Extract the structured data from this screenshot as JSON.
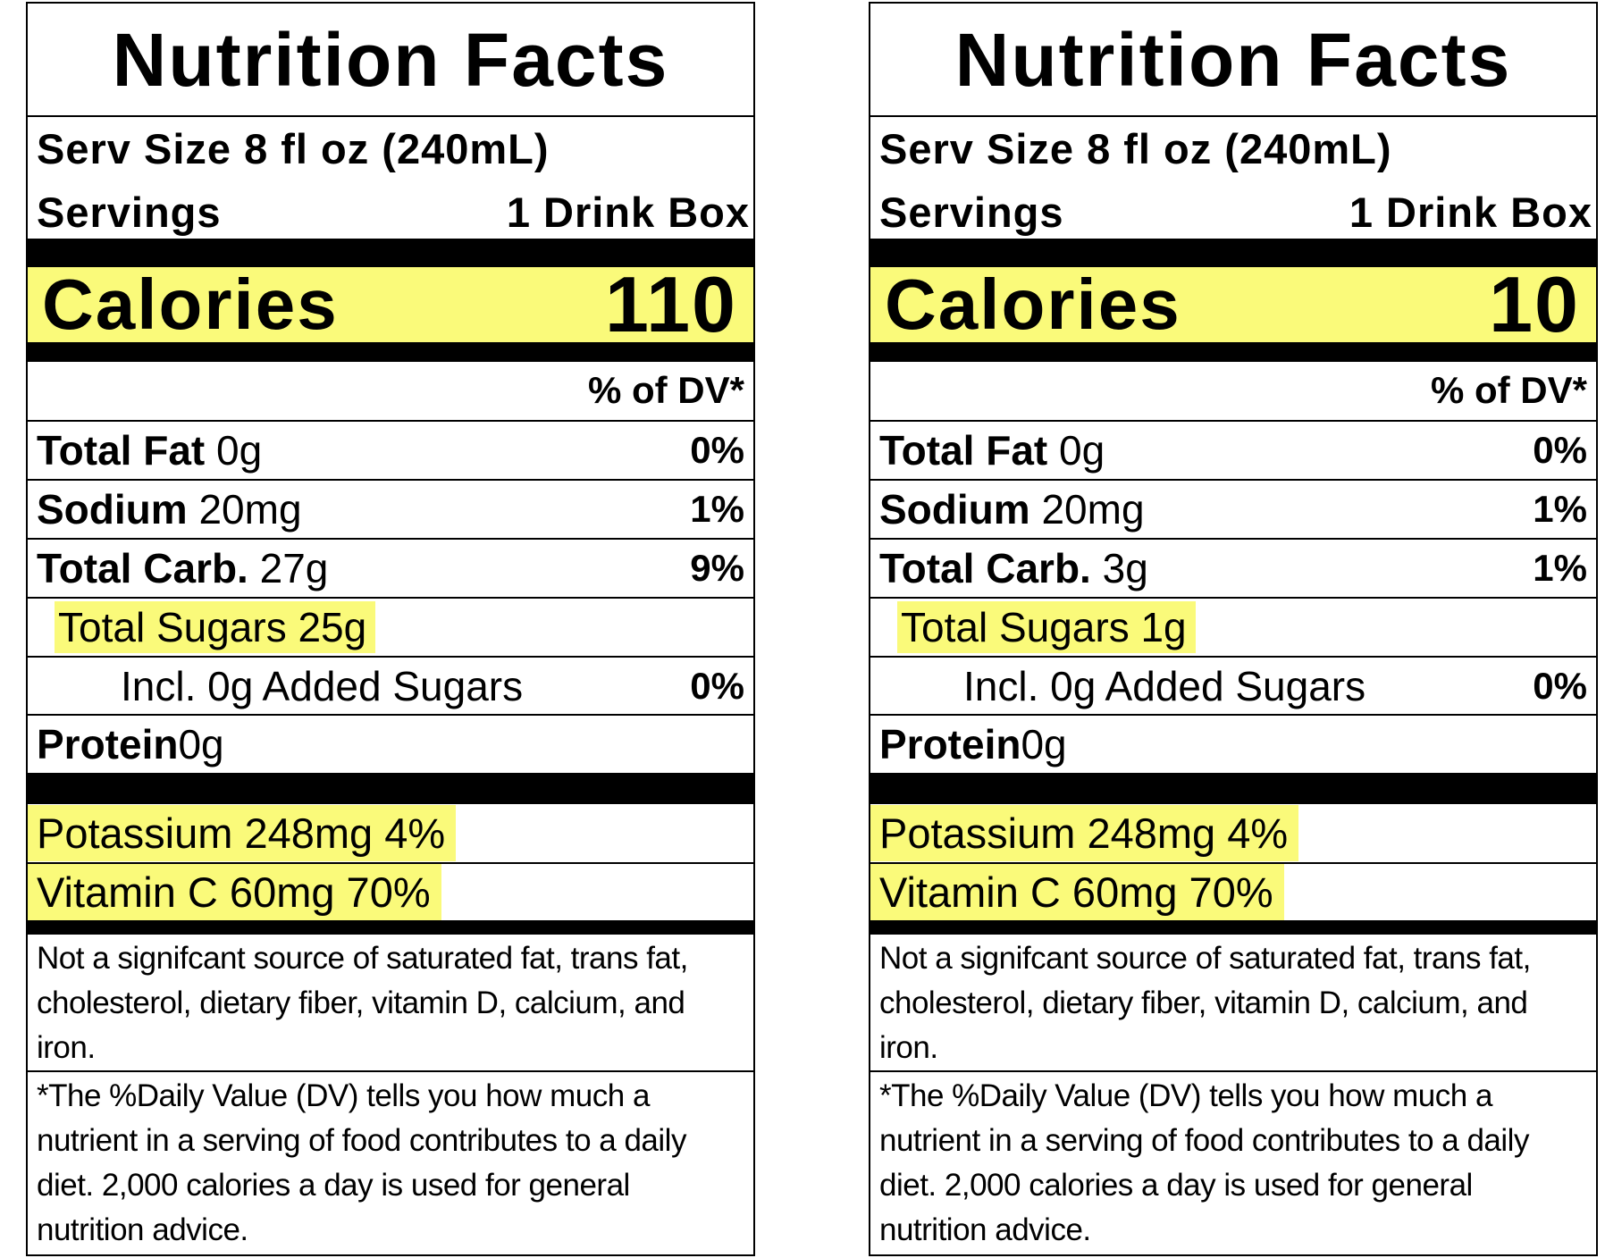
{
  "labels": [
    {
      "title": "Nutrition Facts",
      "serving_size": "Serv Size 8 fl oz (240mL)",
      "servings_label": "Servings",
      "servings_value": "1 Drink Box",
      "calories_label": "Calories",
      "calories_value": "110",
      "dv_header": "% of DV*",
      "nutrients": [
        {
          "name": "Total Fat",
          "amount": "0g",
          "dv": "0%"
        },
        {
          "name": "Sodium",
          "amount": "20mg",
          "dv": "1%"
        },
        {
          "name": "Total Carb.",
          "amount": "27g",
          "dv": "9%"
        }
      ],
      "sugars": "Total Sugars 25g",
      "added_sugars": {
        "text": "Incl. 0g Added Sugars",
        "dv": "0%"
      },
      "protein": {
        "name": "Protein",
        "amount": "0g"
      },
      "minerals": [
        "Potassium 248mg 4%",
        "Vitamin C 60mg 70%"
      ],
      "footnote_1": "Not a signifcant source of saturated fat, trans fat, cholesterol, dietary fiber, vitamin D, calcium, and iron.",
      "footnote_2": "*The %Daily Value (DV) tells you how much a nutrient in a serving of food contributes to a daily diet. 2,000 calories a day is used for general nutrition advice."
    },
    {
      "title": "Nutrition Facts",
      "serving_size": "Serv Size 8 fl oz (240mL)",
      "servings_label": "Servings",
      "servings_value": "1 Drink Box",
      "calories_label": "Calories",
      "calories_value": "10",
      "dv_header": "% of DV*",
      "nutrients": [
        {
          "name": "Total Fat",
          "amount": "0g",
          "dv": "0%"
        },
        {
          "name": "Sodium",
          "amount": "20mg",
          "dv": "1%"
        },
        {
          "name": "Total Carb.",
          "amount": "3g",
          "dv": "1%"
        }
      ],
      "sugars": "Total Sugars 1g",
      "added_sugars": {
        "text": "Incl. 0g Added Sugars",
        "dv": "0%"
      },
      "protein": {
        "name": "Protein",
        "amount": "0g"
      },
      "minerals": [
        "Potassium 248mg 4%",
        "Vitamin C 60mg 70%"
      ],
      "footnote_1": "Not a signifcant source of saturated fat, trans fat, cholesterol, dietary fiber, vitamin D, calcium, and iron.",
      "footnote_2": "*The %Daily Value (DV) tells you how much a nutrient in a serving of food contributes to a daily diet. 2,000 calories a day is used for general nutrition advice."
    }
  ]
}
